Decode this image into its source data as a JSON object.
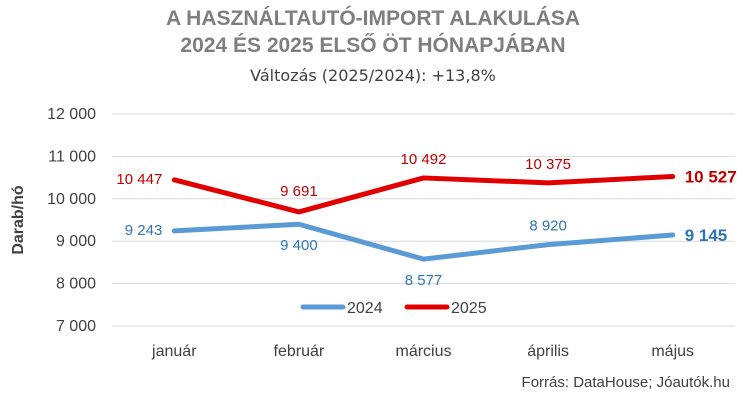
{
  "title_line1": "A HASZNÁLTAUTÓ-IMPORT ALAKULÁSA",
  "title_line2": "2024 ÉS 2025 ELSŐ ÖT HÓNAPJÁBAN",
  "subtitle": "Változás (2025/2024): +13,8%",
  "source": "Forrás: DataHouse; Jóautók.hu",
  "chart_data": {
    "type": "line",
    "title": "A HASZNÁLTAUTÓ-IMPORT ALAKULÁSA 2024 ÉS 2025 ELSŐ ÖT HÓNAPJÁBAN",
    "subtitle": "Változás (2025/2024): +13,8%",
    "xlabel": "",
    "ylabel": "Darab/hó",
    "categories": [
      "január",
      "február",
      "március",
      "április",
      "május"
    ],
    "ylim": [
      7000,
      12000
    ],
    "yticks": [
      7000,
      8000,
      9000,
      10000,
      11000,
      12000
    ],
    "ytick_labels": [
      "7 000",
      "8 000",
      "9 000",
      "10 000",
      "11 000",
      "12 000"
    ],
    "grid": true,
    "legend_position": "bottom-center",
    "series": [
      {
        "name": "2024",
        "color": "#5b9bd5",
        "label_color": "#2e75b6",
        "values": [
          9243,
          9400,
          8577,
          8920,
          9145
        ],
        "value_labels": [
          "9 243",
          "9 400",
          "8 577",
          "8 920",
          "9 145"
        ]
      },
      {
        "name": "2025",
        "color": "#e00000",
        "label_color": "#c00000",
        "values": [
          10447,
          9691,
          10492,
          10375,
          10527
        ],
        "value_labels": [
          "10 447",
          "9 691",
          "10 492",
          "10 375",
          "10 527"
        ]
      }
    ]
  }
}
